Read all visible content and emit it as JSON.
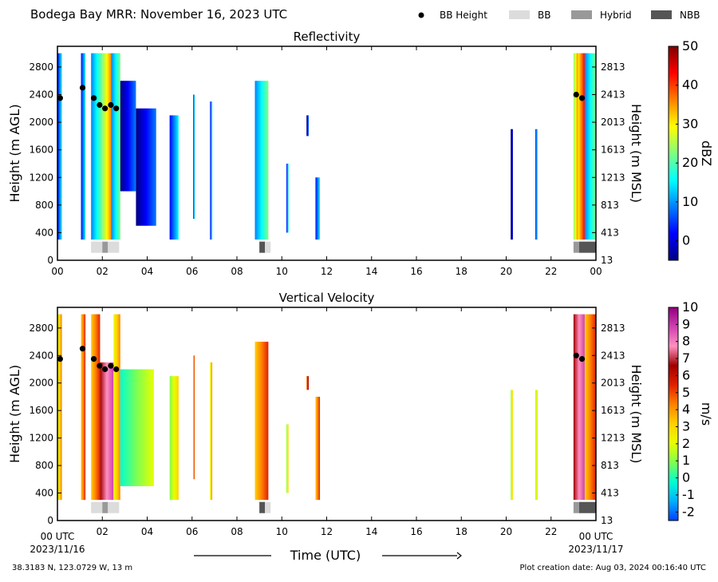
{
  "header": {
    "title": "Bodega Bay MRR:  November 16, 2023 UTC"
  },
  "legend": {
    "items": [
      {
        "label": "BB Height",
        "kind": "dot",
        "color": "#000000"
      },
      {
        "label": "BB",
        "kind": "patch",
        "color": "#dcdcdc"
      },
      {
        "label": "Hybrid",
        "kind": "patch",
        "color": "#999999"
      },
      {
        "label": "NBB",
        "kind": "patch",
        "color": "#555555"
      }
    ]
  },
  "footer": {
    "location": "38.3183 N, 123.0729 W, 13 m",
    "creation": "Plot creation date: Aug 03, 2024 00:16:40 UTC",
    "xlabel": "Time (UTC)",
    "start_time": "00 UTC",
    "start_date": "2023/11/16",
    "end_time": "00 UTC",
    "end_date": "2023/11/17"
  },
  "chart_data": [
    {
      "type": "heatmap",
      "title": "Reflectivity",
      "ylabel": "Height (m AGL)",
      "ylabel_right": "Height (m MSL)",
      "colorbar_label": "dBZ",
      "x_range_hours": [
        0,
        24
      ],
      "ylim": [
        0,
        3100
      ],
      "x_ticks": [
        "00",
        "02",
        "04",
        "06",
        "08",
        "10",
        "12",
        "14",
        "16",
        "18",
        "20",
        "22",
        "00"
      ],
      "y_ticks": [
        0,
        400,
        800,
        1200,
        1600,
        2000,
        2400,
        2800
      ],
      "y_ticks_right": [
        "13",
        "413",
        "813",
        "1213",
        "1613",
        "2013",
        "2413",
        "2813"
      ],
      "colorbar": {
        "min": -5,
        "max": 50,
        "ticks": [
          "0",
          "10",
          "20",
          "30",
          "40",
          "50"
        ],
        "tick_values": [
          0,
          10,
          20,
          30,
          40,
          50
        ],
        "colors": [
          "#00007f",
          "#0000ff",
          "#007fff",
          "#00ffff",
          "#7fff7f",
          "#ffff00",
          "#ff7f00",
          "#ff0000",
          "#7f0000"
        ]
      },
      "echo_columns": [
        {
          "t0": 0.0,
          "t1": 0.2,
          "h0": 300,
          "h1": 3000,
          "level": 0.3
        },
        {
          "t0": 1.05,
          "t1": 1.25,
          "h0": 300,
          "h1": 3000,
          "level": 0.3
        },
        {
          "t0": 1.5,
          "t1": 2.0,
          "h0": 300,
          "h1": 3000,
          "level": 0.35
        },
        {
          "t0": 2.0,
          "t1": 2.4,
          "h0": 300,
          "h1": 3000,
          "level": 0.62
        },
        {
          "t0": 2.4,
          "t1": 2.8,
          "h0": 300,
          "h1": 3000,
          "level": 0.4
        },
        {
          "t0": 2.8,
          "t1": 3.5,
          "h0": 1000,
          "h1": 2600,
          "level": 0.12
        },
        {
          "t0": 3.5,
          "t1": 4.4,
          "h0": 500,
          "h1": 2200,
          "level": 0.15
        },
        {
          "t0": 5.0,
          "t1": 5.4,
          "h0": 300,
          "h1": 2100,
          "level": 0.3
        },
        {
          "t0": 6.05,
          "t1": 6.12,
          "h0": 600,
          "h1": 2400,
          "level": 0.3
        },
        {
          "t0": 6.8,
          "t1": 6.9,
          "h0": 300,
          "h1": 2300,
          "level": 0.3
        },
        {
          "t0": 8.8,
          "t1": 9.4,
          "h0": 300,
          "h1": 2600,
          "level": 0.4
        },
        {
          "t0": 10.2,
          "t1": 10.3,
          "h0": 400,
          "h1": 1400,
          "level": 0.2
        },
        {
          "t0": 11.1,
          "t1": 11.2,
          "h0": 1800,
          "h1": 2100,
          "level": 0.1
        },
        {
          "t0": 11.5,
          "t1": 11.7,
          "h0": 300,
          "h1": 1200,
          "level": 0.2
        },
        {
          "t0": 20.2,
          "t1": 20.3,
          "h0": 300,
          "h1": 1900,
          "level": 0.05
        },
        {
          "t0": 21.3,
          "t1": 21.4,
          "h0": 300,
          "h1": 1900,
          "level": 0.2
        },
        {
          "t0": 23.0,
          "t1": 23.2,
          "h0": 300,
          "h1": 3000,
          "level": 0.62
        },
        {
          "t0": 23.2,
          "t1": 23.5,
          "h0": 300,
          "h1": 3000,
          "level": 0.75
        },
        {
          "t0": 23.5,
          "t1": 24.0,
          "h0": 300,
          "h1": 3000,
          "level": 0.4
        }
      ]
    },
    {
      "type": "heatmap",
      "title": "Vertical Velocity",
      "ylabel": "Height (m AGL)",
      "ylabel_right": "Height (m MSL)",
      "colorbar_label": "m/s",
      "x_range_hours": [
        0,
        24
      ],
      "ylim": [
        0,
        3100
      ],
      "x_ticks": [
        "",
        "02",
        "04",
        "06",
        "08",
        "10",
        "12",
        "14",
        "16",
        "18",
        "20",
        "22",
        ""
      ],
      "y_ticks": [
        0,
        400,
        800,
        1200,
        1600,
        2000,
        2400,
        2800
      ],
      "y_ticks_right": [
        "13",
        "413",
        "813",
        "1213",
        "1613",
        "2013",
        "2413",
        "2813"
      ],
      "colorbar": {
        "min": -2.5,
        "max": 10,
        "ticks": [
          "-2",
          "-1",
          "0",
          "1",
          "2",
          "3",
          "4",
          "5",
          "6",
          "7",
          "8",
          "9",
          "10"
        ],
        "tick_values": [
          -2,
          -1,
          0,
          1,
          2,
          3,
          4,
          5,
          6,
          7,
          8,
          9,
          10
        ],
        "colors": [
          "#0040ff",
          "#00b0ff",
          "#00ffd0",
          "#7fff50",
          "#e8ff00",
          "#ffd000",
          "#ff8000",
          "#e02000",
          "#a00000",
          "#ff90c0",
          "#d040b0",
          "#900080"
        ]
      },
      "echo_columns": [
        {
          "t0": 0.0,
          "t1": 0.2,
          "h0": 300,
          "h1": 3000,
          "level": 0.45
        },
        {
          "t0": 1.05,
          "t1": 1.25,
          "h0": 300,
          "h1": 3000,
          "level": 0.55
        },
        {
          "t0": 1.5,
          "t1": 1.9,
          "h0": 300,
          "h1": 3000,
          "level": 0.5
        },
        {
          "t0": 1.9,
          "t1": 2.5,
          "h0": 300,
          "h1": 2300,
          "level": 0.8
        },
        {
          "t0": 2.5,
          "t1": 2.8,
          "h0": 300,
          "h1": 3000,
          "level": 0.45
        },
        {
          "t0": 2.8,
          "t1": 4.3,
          "h0": 500,
          "h1": 2200,
          "level": 0.3
        },
        {
          "t0": 5.0,
          "t1": 5.4,
          "h0": 300,
          "h1": 2100,
          "level": 0.35
        },
        {
          "t0": 6.05,
          "t1": 6.12,
          "h0": 600,
          "h1": 2400,
          "level": 0.5
        },
        {
          "t0": 6.8,
          "t1": 6.9,
          "h0": 300,
          "h1": 2300,
          "level": 0.45
        },
        {
          "t0": 8.8,
          "t1": 9.4,
          "h0": 300,
          "h1": 2600,
          "level": 0.55
        },
        {
          "t0": 10.2,
          "t1": 10.3,
          "h0": 400,
          "h1": 1400,
          "level": 0.4
        },
        {
          "t0": 11.1,
          "t1": 11.2,
          "h0": 1900,
          "h1": 2100,
          "level": 0.6
        },
        {
          "t0": 11.5,
          "t1": 11.7,
          "h0": 300,
          "h1": 1800,
          "level": 0.5
        },
        {
          "t0": 20.2,
          "t1": 20.3,
          "h0": 300,
          "h1": 1900,
          "level": 0.35
        },
        {
          "t0": 21.3,
          "t1": 21.4,
          "h0": 300,
          "h1": 1900,
          "level": 0.4
        },
        {
          "t0": 23.0,
          "t1": 23.5,
          "h0": 300,
          "h1": 3000,
          "level": 0.85
        },
        {
          "t0": 23.5,
          "t1": 24.0,
          "h0": 300,
          "h1": 3000,
          "level": 0.5
        }
      ]
    }
  ],
  "bb_height_points": [
    {
      "t": 0.12,
      "h": 2350
    },
    {
      "t": 1.12,
      "h": 2500
    },
    {
      "t": 1.62,
      "h": 2350
    },
    {
      "t": 1.88,
      "h": 2250
    },
    {
      "t": 2.12,
      "h": 2200
    },
    {
      "t": 2.38,
      "h": 2250
    },
    {
      "t": 2.62,
      "h": 2200
    },
    {
      "t": 23.12,
      "h": 2400
    },
    {
      "t": 23.38,
      "h": 2350
    }
  ],
  "bb_class_strip": [
    {
      "t0": 1.5,
      "t1": 2.0,
      "class": "BB"
    },
    {
      "t0": 2.0,
      "t1": 2.25,
      "class": "Hybrid"
    },
    {
      "t0": 2.25,
      "t1": 2.75,
      "class": "BB"
    },
    {
      "t0": 9.0,
      "t1": 9.25,
      "class": "NBB"
    },
    {
      "t0": 9.25,
      "t1": 9.5,
      "class": "BB"
    },
    {
      "t0": 23.0,
      "t1": 23.25,
      "class": "Hybrid"
    },
    {
      "t0": 23.25,
      "t1": 24.0,
      "class": "NBB"
    }
  ]
}
